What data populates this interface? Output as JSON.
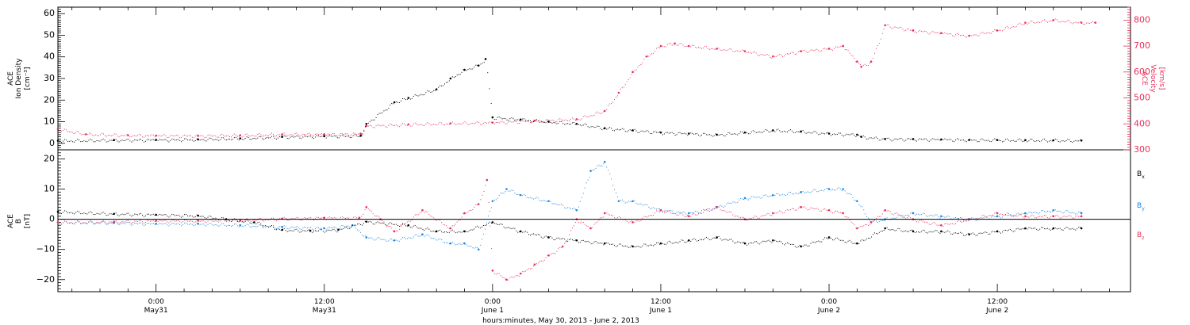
{
  "chart_data": [
    {
      "type": "scatter",
      "panel": "top",
      "ylabel_left": [
        "ACE",
        "Ion Density",
        "[cm⁻³]"
      ],
      "ylabel_right": [
        "ACE",
        "Velocity",
        "[km/s]"
      ],
      "ylim_left": [
        -3,
        63
      ],
      "ylim_right": [
        300,
        850
      ],
      "yticks_left": [
        "0",
        "10",
        "20",
        "30",
        "40",
        "50",
        "60"
      ],
      "yticks_right": [
        "300",
        "400",
        "500",
        "600",
        "700",
        "800"
      ],
      "x_range_hours": [
        -7,
        69.5
      ],
      "series": [
        {
          "axis": "left",
          "color": "#000000",
          "points": [
            [
              -7,
              1.2
            ],
            [
              -3,
              1.5
            ],
            [
              0,
              1.6
            ],
            [
              3,
              1.8
            ],
            [
              6,
              2.3
            ],
            [
              9,
              3.0
            ],
            [
              12,
              3.3
            ],
            [
              14.6,
              3.5
            ],
            [
              15,
              9
            ],
            [
              17,
              19
            ],
            [
              18,
              21
            ],
            [
              20,
              25
            ],
            [
              21,
              30
            ],
            [
              22,
              34
            ],
            [
              23,
              36
            ],
            [
              23.5,
              39
            ],
            [
              24,
              12
            ],
            [
              26,
              11
            ],
            [
              28,
              10
            ],
            [
              30,
              9
            ],
            [
              32,
              7
            ],
            [
              34,
              6
            ],
            [
              36,
              5
            ],
            [
              38,
              4.5
            ],
            [
              40,
              4
            ],
            [
              42,
              5
            ],
            [
              44,
              6
            ],
            [
              46,
              5.5
            ],
            [
              48,
              4.5
            ],
            [
              50,
              4
            ],
            [
              50.3,
              3
            ],
            [
              52,
              2
            ],
            [
              54,
              2
            ],
            [
              56,
              1.8
            ],
            [
              58,
              1.6
            ],
            [
              60,
              1.5
            ],
            [
              62,
              1.5
            ],
            [
              64,
              1.4
            ],
            [
              66,
              1.3
            ]
          ]
        },
        {
          "axis": "right",
          "color": "#e8305a",
          "points": [
            [
              -7,
              380
            ],
            [
              -5,
              360
            ],
            [
              -2,
              356
            ],
            [
              0,
              355
            ],
            [
              3,
              354
            ],
            [
              6,
              356
            ],
            [
              9,
              360
            ],
            [
              12,
              360
            ],
            [
              14.6,
              362
            ],
            [
              15,
              392
            ],
            [
              18,
              398
            ],
            [
              21,
              402
            ],
            [
              24,
              405
            ],
            [
              27,
              412
            ],
            [
              30,
              418
            ],
            [
              32,
              450
            ],
            [
              33,
              520
            ],
            [
              34,
              600
            ],
            [
              35,
              660
            ],
            [
              36,
              700
            ],
            [
              37,
              710
            ],
            [
              38,
              700
            ],
            [
              40,
              690
            ],
            [
              42,
              680
            ],
            [
              44,
              660
            ],
            [
              46,
              680
            ],
            [
              48,
              690
            ],
            [
              49,
              700
            ],
            [
              50,
              640
            ],
            [
              50.3,
              620
            ],
            [
              51,
              640
            ],
            [
              52,
              780
            ],
            [
              54,
              760
            ],
            [
              56,
              750
            ],
            [
              58,
              740
            ],
            [
              60,
              760
            ],
            [
              62,
              790
            ],
            [
              64,
              800
            ],
            [
              66,
              790
            ],
            [
              67,
              790
            ]
          ]
        }
      ]
    },
    {
      "type": "scatter",
      "panel": "bottom",
      "ylabel_left": [
        "ACE",
        "B",
        "[nT]"
      ],
      "ylim": [
        -24,
        23
      ],
      "yticks": [
        "−20",
        "−10",
        "0",
        "10",
        "20"
      ],
      "series": [
        {
          "name": "Bx",
          "label": "B",
          "sub": "x",
          "color": "#000000",
          "points": [
            [
              -7,
              2.5
            ],
            [
              -3,
              1.8
            ],
            [
              0,
              1.5
            ],
            [
              3,
              1.2
            ],
            [
              5,
              0
            ],
            [
              7,
              -1
            ],
            [
              9,
              -3.5
            ],
            [
              11,
              -3.8
            ],
            [
              13,
              -3.5
            ],
            [
              15,
              -0.8
            ],
            [
              18,
              -2
            ],
            [
              20,
              -4
            ],
            [
              22,
              -4
            ],
            [
              24,
              -1
            ],
            [
              26,
              -4
            ],
            [
              28,
              -6
            ],
            [
              30,
              -7
            ],
            [
              32,
              -8
            ],
            [
              34,
              -9
            ],
            [
              36,
              -8
            ],
            [
              38,
              -7
            ],
            [
              40,
              -6
            ],
            [
              42,
              -8
            ],
            [
              44,
              -7
            ],
            [
              46,
              -9
            ],
            [
              48,
              -6
            ],
            [
              50,
              -8
            ],
            [
              52,
              -3
            ],
            [
              54,
              -4
            ],
            [
              56,
              -4
            ],
            [
              58,
              -5
            ],
            [
              60,
              -4
            ],
            [
              62,
              -3
            ],
            [
              64,
              -3
            ],
            [
              66,
              -3
            ]
          ]
        },
        {
          "name": "By",
          "label": "B",
          "sub": "y",
          "color": "#1a86e6",
          "points": [
            [
              -7,
              -1
            ],
            [
              -3,
              -1.2
            ],
            [
              0,
              -1.5
            ],
            [
              3,
              -1.5
            ],
            [
              6,
              -2
            ],
            [
              9,
              -2.5
            ],
            [
              12,
              -3
            ],
            [
              14,
              -2
            ],
            [
              15,
              -6
            ],
            [
              17,
              -7
            ],
            [
              19,
              -5
            ],
            [
              21,
              -8
            ],
            [
              22,
              -8
            ],
            [
              23,
              -10
            ],
            [
              24,
              6
            ],
            [
              25,
              10
            ],
            [
              26,
              8
            ],
            [
              28,
              6
            ],
            [
              30,
              3
            ],
            [
              31,
              16
            ],
            [
              32,
              19
            ],
            [
              33,
              6
            ],
            [
              34,
              6
            ],
            [
              36,
              3
            ],
            [
              38,
              2
            ],
            [
              40,
              4
            ],
            [
              42,
              7
            ],
            [
              44,
              8
            ],
            [
              46,
              9
            ],
            [
              48,
              10
            ],
            [
              49,
              10
            ],
            [
              50,
              6
            ],
            [
              51,
              -1
            ],
            [
              52,
              0
            ],
            [
              54,
              2
            ],
            [
              56,
              1
            ],
            [
              58,
              0
            ],
            [
              60,
              1
            ],
            [
              62,
              2
            ],
            [
              64,
              3
            ],
            [
              66,
              2
            ]
          ]
        },
        {
          "name": "Bz",
          "label": "B",
          "sub": "z",
          "color": "#e8305a",
          "points": [
            [
              -7,
              -1
            ],
            [
              -3,
              -0.8
            ],
            [
              0,
              -0.5
            ],
            [
              3,
              -0.5
            ],
            [
              6,
              -0.3
            ],
            [
              9,
              0.2
            ],
            [
              12,
              0.5
            ],
            [
              14.5,
              0.5
            ],
            [
              15,
              4
            ],
            [
              16,
              0
            ],
            [
              17,
              -4
            ],
            [
              19,
              3
            ],
            [
              21,
              -3
            ],
            [
              22,
              2
            ],
            [
              23,
              5
            ],
            [
              23.6,
              13
            ],
            [
              24,
              -17
            ],
            [
              25,
              -20
            ],
            [
              26,
              -18
            ],
            [
              27,
              -15
            ],
            [
              28,
              -12
            ],
            [
              29,
              -9
            ],
            [
              30,
              0
            ],
            [
              31,
              -3
            ],
            [
              32,
              2
            ],
            [
              34,
              -1
            ],
            [
              36,
              3
            ],
            [
              38,
              1
            ],
            [
              40,
              4
            ],
            [
              42,
              0
            ],
            [
              44,
              2
            ],
            [
              46,
              4
            ],
            [
              48,
              3
            ],
            [
              49,
              2
            ],
            [
              50,
              -3
            ],
            [
              51,
              -1
            ],
            [
              52,
              3
            ],
            [
              54,
              0
            ],
            [
              56,
              -2
            ],
            [
              58,
              0
            ],
            [
              60,
              2
            ],
            [
              62,
              1
            ],
            [
              64,
              1
            ],
            [
              66,
              1
            ]
          ]
        }
      ]
    }
  ],
  "x_axis": {
    "ticks": [
      {
        "hours": 0,
        "time": "0:00",
        "date": "May31"
      },
      {
        "hours": 12,
        "time": "12:00",
        "date": "May31"
      },
      {
        "hours": 24,
        "time": "0:00",
        "date": "June 1"
      },
      {
        "hours": 36,
        "time": "12:00",
        "date": "June 1"
      },
      {
        "hours": 48,
        "time": "0:00",
        "date": "June 2"
      },
      {
        "hours": 60,
        "time": "12:00",
        "date": "June 2"
      }
    ],
    "label": "hours:minutes, May 30, 2013 - June  2, 2013"
  },
  "colors": {
    "density": "#000000",
    "velocity": "#e8305a",
    "bx": "#000000",
    "by": "#1a86e6",
    "bz": "#e8305a"
  }
}
